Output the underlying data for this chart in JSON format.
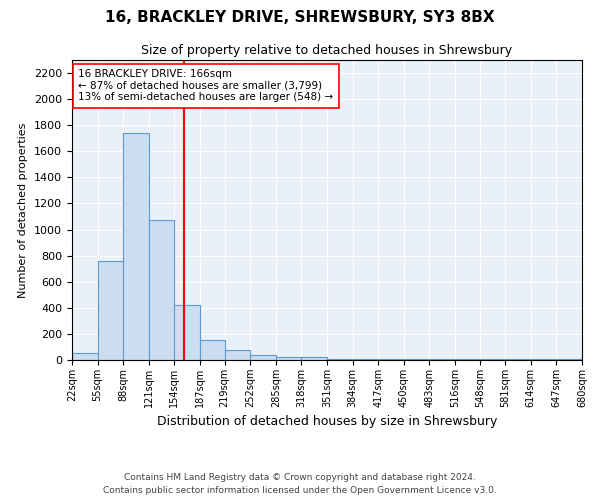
{
  "title": "16, BRACKLEY DRIVE, SHREWSBURY, SY3 8BX",
  "subtitle": "Size of property relative to detached houses in Shrewsbury",
  "xlabel": "Distribution of detached houses by size in Shrewsbury",
  "ylabel": "Number of detached properties",
  "bin_edges": [
    22,
    55,
    88,
    121,
    154,
    187,
    219,
    252,
    285,
    318,
    351,
    384,
    417,
    450,
    483,
    516,
    548,
    581,
    614,
    647,
    680
  ],
  "bar_heights": [
    50,
    760,
    1740,
    1070,
    420,
    150,
    80,
    40,
    25,
    20,
    8,
    5,
    5,
    5,
    5,
    5,
    5,
    5,
    5,
    5
  ],
  "bar_facecolor": "#ccddf0",
  "bar_edgecolor": "#5b9bd5",
  "red_line_x": 166,
  "annotation_title": "16 BRACKLEY DRIVE: 166sqm",
  "annotation_line1": "← 87% of detached houses are smaller (3,799)",
  "annotation_line2": "13% of semi-detached houses are larger (548) →",
  "ylim": [
    0,
    2300
  ],
  "yticks": [
    0,
    200,
    400,
    600,
    800,
    1000,
    1200,
    1400,
    1600,
    1800,
    2000,
    2200
  ],
  "bg_color": "#eaf0f8",
  "footnote1": "Contains HM Land Registry data © Crown copyright and database right 2024.",
  "footnote2": "Contains public sector information licensed under the Open Government Licence v3.0."
}
